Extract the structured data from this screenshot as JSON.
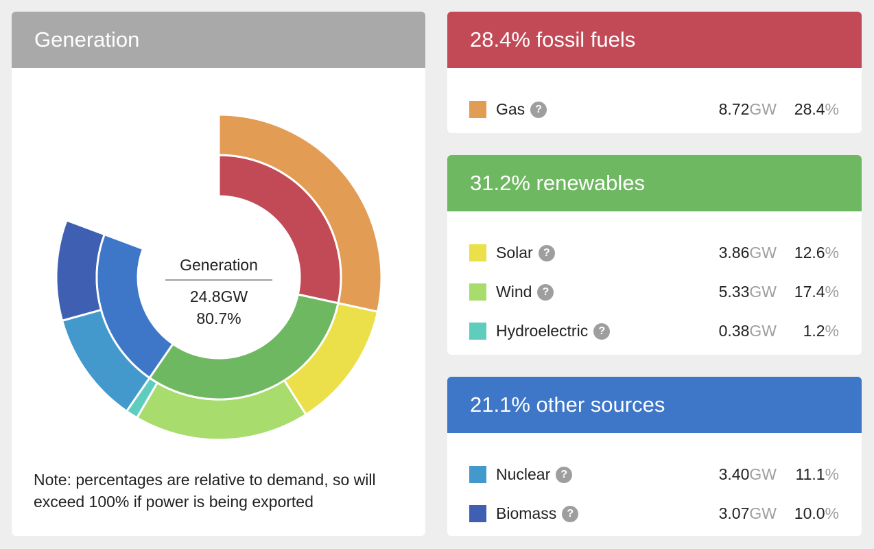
{
  "generation_card": {
    "title": "Generation",
    "center": {
      "label": "Generation",
      "gw": "24.8GW",
      "pct": "80.7%"
    },
    "note": "Note: percentages are relative to demand, so will exceed 100% if power is being exported"
  },
  "groups": [
    {
      "id": "fossil",
      "title": "28.4% fossil fuels",
      "color": "#c24a56",
      "items": [
        {
          "name": "Gas",
          "color": "#e39c54",
          "gw": "8.72",
          "gw_unit": "GW",
          "pct": "28.4",
          "pct_unit": "%"
        }
      ]
    },
    {
      "id": "renewables",
      "title": "31.2% renewables",
      "color": "#6fb862",
      "items": [
        {
          "name": "Solar",
          "color": "#ebe04a",
          "gw": "3.86",
          "gw_unit": "GW",
          "pct": "12.6",
          "pct_unit": "%"
        },
        {
          "name": "Wind",
          "color": "#a8dc6c",
          "gw": "5.33",
          "gw_unit": "GW",
          "pct": "17.4",
          "pct_unit": "%"
        },
        {
          "name": "Hydroelectric",
          "color": "#5fcdbd",
          "gw": "0.38",
          "gw_unit": "GW",
          "pct": "1.2",
          "pct_unit": "%"
        }
      ]
    },
    {
      "id": "other",
      "title": "21.1% other sources",
      "color": "#3e76c8",
      "items": [
        {
          "name": "Nuclear",
          "color": "#4499cc",
          "gw": "3.40",
          "gw_unit": "GW",
          "pct": "11.1",
          "pct_unit": "%"
        },
        {
          "name": "Biomass",
          "color": "#3f5fb2",
          "gw": "3.07",
          "gw_unit": "GW",
          "pct": "10.0",
          "pct_unit": "%"
        }
      ]
    }
  ],
  "help_glyph": "?",
  "chart_data": {
    "type": "pie",
    "inner_ring": [
      {
        "name": "fossil fuels",
        "value": 28.4,
        "color": "#c24a56"
      },
      {
        "name": "renewables",
        "value": 31.2,
        "color": "#6fb862"
      },
      {
        "name": "other sources",
        "value": 21.1,
        "color": "#3e76c8"
      }
    ],
    "outer_ring": [
      {
        "name": "Gas",
        "value": 28.4,
        "color": "#e39c54"
      },
      {
        "name": "Solar",
        "value": 12.6,
        "color": "#ebe04a"
      },
      {
        "name": "Wind",
        "value": 17.4,
        "color": "#a8dc6c"
      },
      {
        "name": "Hydroelectric",
        "value": 1.2,
        "color": "#5fcdbd"
      },
      {
        "name": "Nuclear",
        "value": 11.1,
        "color": "#4499cc"
      },
      {
        "name": "Biomass",
        "value": 10.0,
        "color": "#3f5fb2"
      }
    ]
  }
}
